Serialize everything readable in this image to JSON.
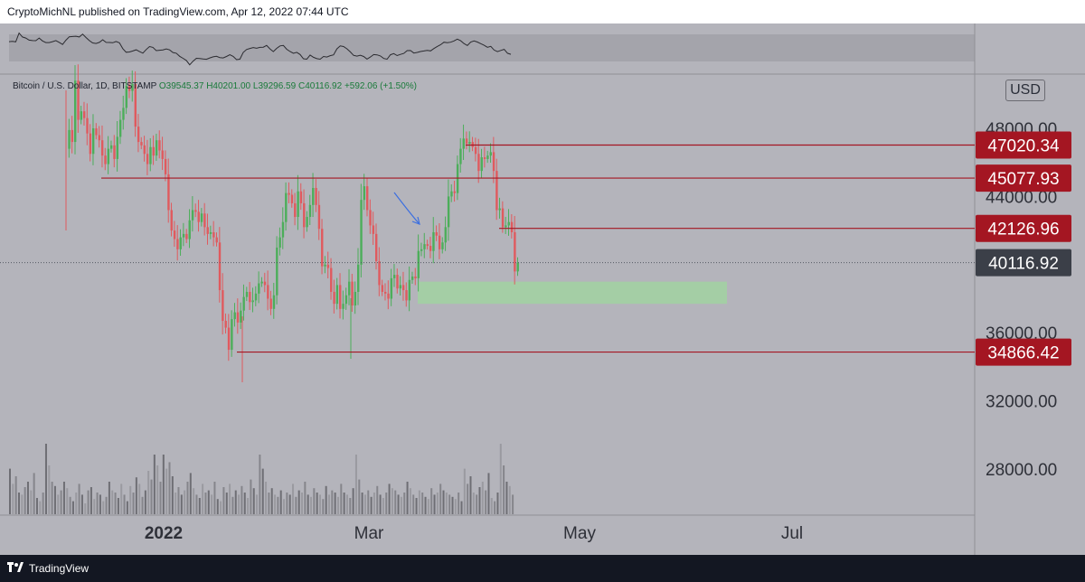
{
  "header": {
    "text": "CryptoMichNL published on TradingView.com, Apr 12, 2022 07:44 UTC"
  },
  "legend": {
    "symbol": "Bitcoin / U.S. Dollar, 1D, BITSTAMP",
    "open": "O39545.37",
    "high": "H40201.00",
    "low": "L39296.59",
    "close": "C40116.92",
    "change": "+592.06 (+1.50%)"
  },
  "currency": "USD",
  "footer": {
    "brand": "TradingView"
  },
  "colors": {
    "up": "#4cae5a",
    "down": "#e05a5e",
    "level": "#a41622",
    "zone": "#9fd79d",
    "price_badge": "#3b3f48",
    "volume": "#8a8a90"
  },
  "chart_data": {
    "type": "candlestick",
    "title": "Bitcoin / U.S. Dollar, 1D, BITSTAMP",
    "x_tick_labels": [
      "2022",
      "Mar",
      "May",
      "Jul"
    ],
    "y_tick_labels": [
      "48000.00",
      "44000.00",
      "36000.00",
      "32000.00",
      "28000.00"
    ],
    "y_ticks": [
      48000,
      44000,
      36000,
      32000,
      28000
    ],
    "ylim": [
      25800,
      50600
    ],
    "level_lines": [
      {
        "label": "47020.34",
        "value": 47020.34
      },
      {
        "label": "45077.93",
        "value": 45077.93
      },
      {
        "label": "42126.96",
        "value": 42126.96
      },
      {
        "label": "34866.42",
        "value": 34866.42
      }
    ],
    "current_price": {
      "label": "40116.92",
      "value": 40116.92
    },
    "support_zone": {
      "low": 37700,
      "high": 39000
    },
    "price_path": [
      46800,
      47900,
      47200,
      50800,
      48500,
      49000,
      48600,
      47700,
      46500,
      48000,
      47600,
      47300,
      46400,
      45900,
      46800,
      47000,
      46200,
      47500,
      48500,
      49200,
      50500,
      50200,
      50600,
      48100,
      47200,
      47000,
      46500,
      45900,
      46900,
      46400,
      47300,
      46700,
      46200,
      45300,
      43200,
      42000,
      41500,
      40900,
      41600,
      41800,
      41500,
      42600,
      43200,
      43100,
      42500,
      43000,
      42200,
      41800,
      41900,
      41600,
      41300,
      38500,
      36700,
      36300,
      35000,
      36800,
      37200,
      36600,
      37300,
      38100,
      38400,
      37800,
      37900,
      38300,
      38900,
      39000,
      38800,
      38000,
      37400,
      38200,
      41000,
      41600,
      42500,
      44200,
      44100,
      43600,
      42800,
      44300,
      43600,
      42200,
      42800,
      43500,
      44500,
      43500,
      42100,
      39900,
      40000,
      39800,
      38400,
      37700,
      38800,
      37400,
      37700,
      38200,
      39000,
      37600,
      38400,
      40000,
      43800,
      44600,
      43200,
      42300,
      41800,
      40200,
      38800,
      38400,
      38300,
      38000,
      39200,
      39400,
      38600,
      38800,
      38500,
      37900,
      39100,
      39300,
      39200,
      40800,
      40900,
      41200,
      41100,
      40800,
      41900,
      41700,
      40900,
      41300,
      42200,
      44000,
      44300,
      44200,
      45900,
      46800,
      47400,
      47100,
      47200,
      46900,
      46500,
      45500,
      46300,
      46200,
      46400,
      46600,
      45500,
      43200,
      43300,
      42200,
      42300,
      42500,
      41900,
      39600,
      40100
    ],
    "volume_relative": [
      0.42,
      0.28,
      0.35,
      0.2,
      0.18,
      0.25,
      0.3,
      0.22,
      0.38,
      0.15,
      0.12,
      0.2,
      0.65,
      0.45,
      0.3,
      0.26,
      0.18,
      0.22,
      0.3,
      0.24,
      0.16,
      0.12,
      0.2,
      0.28,
      0.18,
      0.1,
      0.22,
      0.25,
      0.14,
      0.2,
      0.18,
      0.12,
      0.16,
      0.3,
      0.22,
      0.2,
      0.15,
      0.28,
      0.18,
      0.12,
      0.26,
      0.2,
      0.34,
      0.28,
      0.16,
      0.22,
      0.4,
      0.32,
      0.55,
      0.45,
      0.3,
      0.55,
      0.42,
      0.48,
      0.35,
      0.2,
      0.25,
      0.18,
      0.22,
      0.3,
      0.38,
      0.24,
      0.18,
      0.15,
      0.28,
      0.2,
      0.22,
      0.18,
      0.3,
      0.14,
      0.12,
      0.25,
      0.2,
      0.28,
      0.16,
      0.22,
      0.18,
      0.26,
      0.2,
      0.15,
      0.32,
      0.24,
      0.18,
      0.55,
      0.42,
      0.3,
      0.2,
      0.24,
      0.18,
      0.16,
      0.22,
      0.14,
      0.2,
      0.18,
      0.28,
      0.16,
      0.22,
      0.2,
      0.3,
      0.18,
      0.16,
      0.24,
      0.2,
      0.18,
      0.14,
      0.26,
      0.18,
      0.22,
      0.2,
      0.16,
      0.28,
      0.2,
      0.18,
      0.15,
      0.24,
      0.55,
      0.32,
      0.2,
      0.18,
      0.22,
      0.16,
      0.2,
      0.26,
      0.18,
      0.15,
      0.2,
      0.28,
      0.24,
      0.22,
      0.18,
      0.16,
      0.2,
      0.3,
      0.24,
      0.18,
      0.15,
      0.22,
      0.2,
      0.16,
      0.14,
      0.24,
      0.18,
      0.2,
      0.28,
      0.22,
      0.2,
      0.18,
      0.16,
      0.14,
      0.2,
      0.12
    ]
  }
}
